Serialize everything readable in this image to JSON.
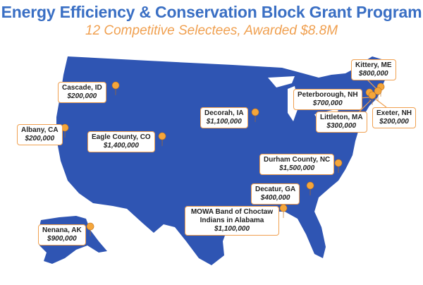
{
  "title": "Energy Efficiency & Conservation Block Grant Program",
  "subtitle": "12 Competitive Selectees, Awarded $8.8M",
  "colors": {
    "map_fill": "#2f55b3",
    "accent": "#f0a050",
    "title": "#3a6fc4",
    "pin": "#f5a63a"
  },
  "selectees": [
    {
      "location": "Cascade, ID",
      "amount": "$200,000"
    },
    {
      "location": "Albany, CA",
      "amount": "$200,000"
    },
    {
      "location": "Eagle County, CO",
      "amount": "$1,400,000"
    },
    {
      "location": "Decorah, IA",
      "amount": "$1,100,000"
    },
    {
      "location": "Kittery, ME",
      "amount": "$800,000"
    },
    {
      "location": "Peterborough, NH",
      "amount": "$700,000"
    },
    {
      "location": "Littleton, MA",
      "amount": "$300,000"
    },
    {
      "location": "Exeter, NH",
      "amount": "$200,000"
    },
    {
      "location": "Durham County, NC",
      "amount": "$1,500,000"
    },
    {
      "location": "Decatur, GA",
      "amount": "$400,000"
    },
    {
      "location": "MOWA Band of Choctaw Indians in Alabama",
      "amount": "$1,100,000"
    },
    {
      "location": "Nenana, AK",
      "amount": "$900,000"
    }
  ]
}
